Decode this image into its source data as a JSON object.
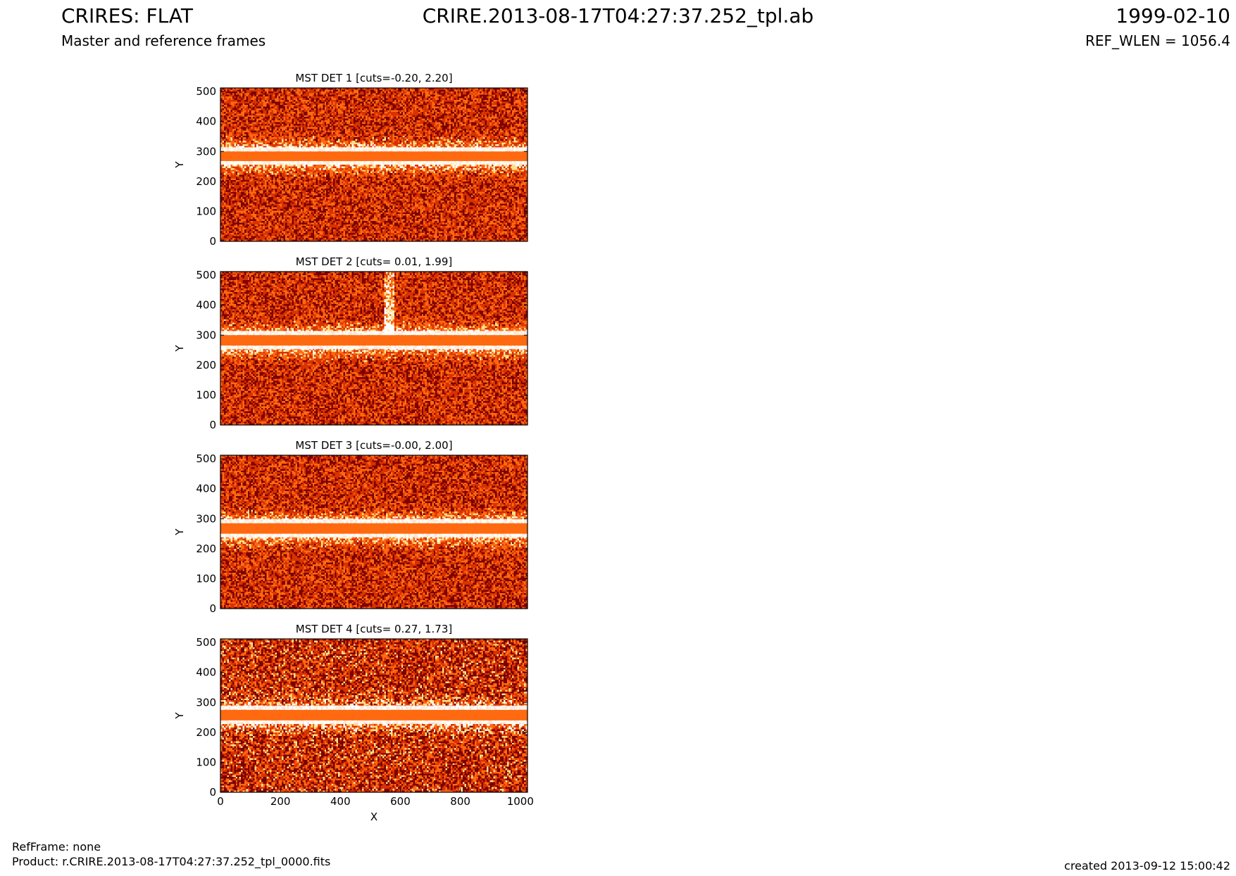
{
  "header": {
    "left_title": "CRIRES: FLAT",
    "left_subtitle": "Master and reference frames",
    "center_title": "CRIRE.2013-08-17T04:27:37.252_tpl.ab",
    "right_title": "1999-02-10",
    "right_subtitle": "REF_WLEN = 1056.4"
  },
  "footer": {
    "ref_frame": "RefFrame: none",
    "product": "Product: r.CRIRE.2013-08-17T04:27:37.252_tpl_0000.fits",
    "created": "created 2013-09-12 15:00:42"
  },
  "colors": {
    "dark": "#7a0000",
    "mid": "#d83200",
    "orange": "#ff6a10",
    "bright": "#ffe08a",
    "white": "#ffffff"
  },
  "chart_data": [
    {
      "type": "heatmap",
      "title": "MST DET 1 [cuts=-0.20, 2.20]",
      "xlabel": "",
      "ylabel": "Y",
      "xlim": [
        0,
        1024
      ],
      "ylim": [
        0,
        512
      ],
      "xticks": [],
      "yticks": [
        0,
        100,
        200,
        300,
        400,
        500
      ],
      "cuts": [
        -0.2,
        2.2
      ],
      "band_y": [
        268,
        300
      ],
      "glow_y": 285
    },
    {
      "type": "heatmap",
      "title": "MST DET 2 [cuts= 0.01, 1.99]",
      "xlabel": "",
      "ylabel": "Y",
      "xlim": [
        0,
        1024
      ],
      "ylim": [
        0,
        512
      ],
      "xticks": [],
      "yticks": [
        0,
        100,
        200,
        300,
        400,
        500
      ],
      "cuts": [
        0.01,
        1.99
      ],
      "band_y": [
        265,
        300
      ],
      "glow_y": 283
    },
    {
      "type": "heatmap",
      "title": "MST DET 3 [cuts=-0.00, 2.00]",
      "xlabel": "",
      "ylabel": "Y",
      "xlim": [
        0,
        1024
      ],
      "ylim": [
        0,
        512
      ],
      "xticks": [],
      "yticks": [
        0,
        100,
        200,
        300,
        400,
        500
      ],
      "cuts": [
        -0.0,
        2.0
      ],
      "band_y": [
        250,
        285
      ],
      "glow_y": 268
    },
    {
      "type": "heatmap",
      "title": "MST DET 4 [cuts= 0.27, 1.73]",
      "xlabel": "X",
      "ylabel": "Y",
      "xlim": [
        0,
        1024
      ],
      "ylim": [
        0,
        512
      ],
      "xticks": [
        0,
        200,
        400,
        600,
        800,
        1000
      ],
      "yticks": [
        0,
        100,
        200,
        300,
        400,
        500
      ],
      "cuts": [
        0.27,
        1.73
      ],
      "band_y": [
        240,
        275
      ],
      "glow_y": 258
    }
  ]
}
